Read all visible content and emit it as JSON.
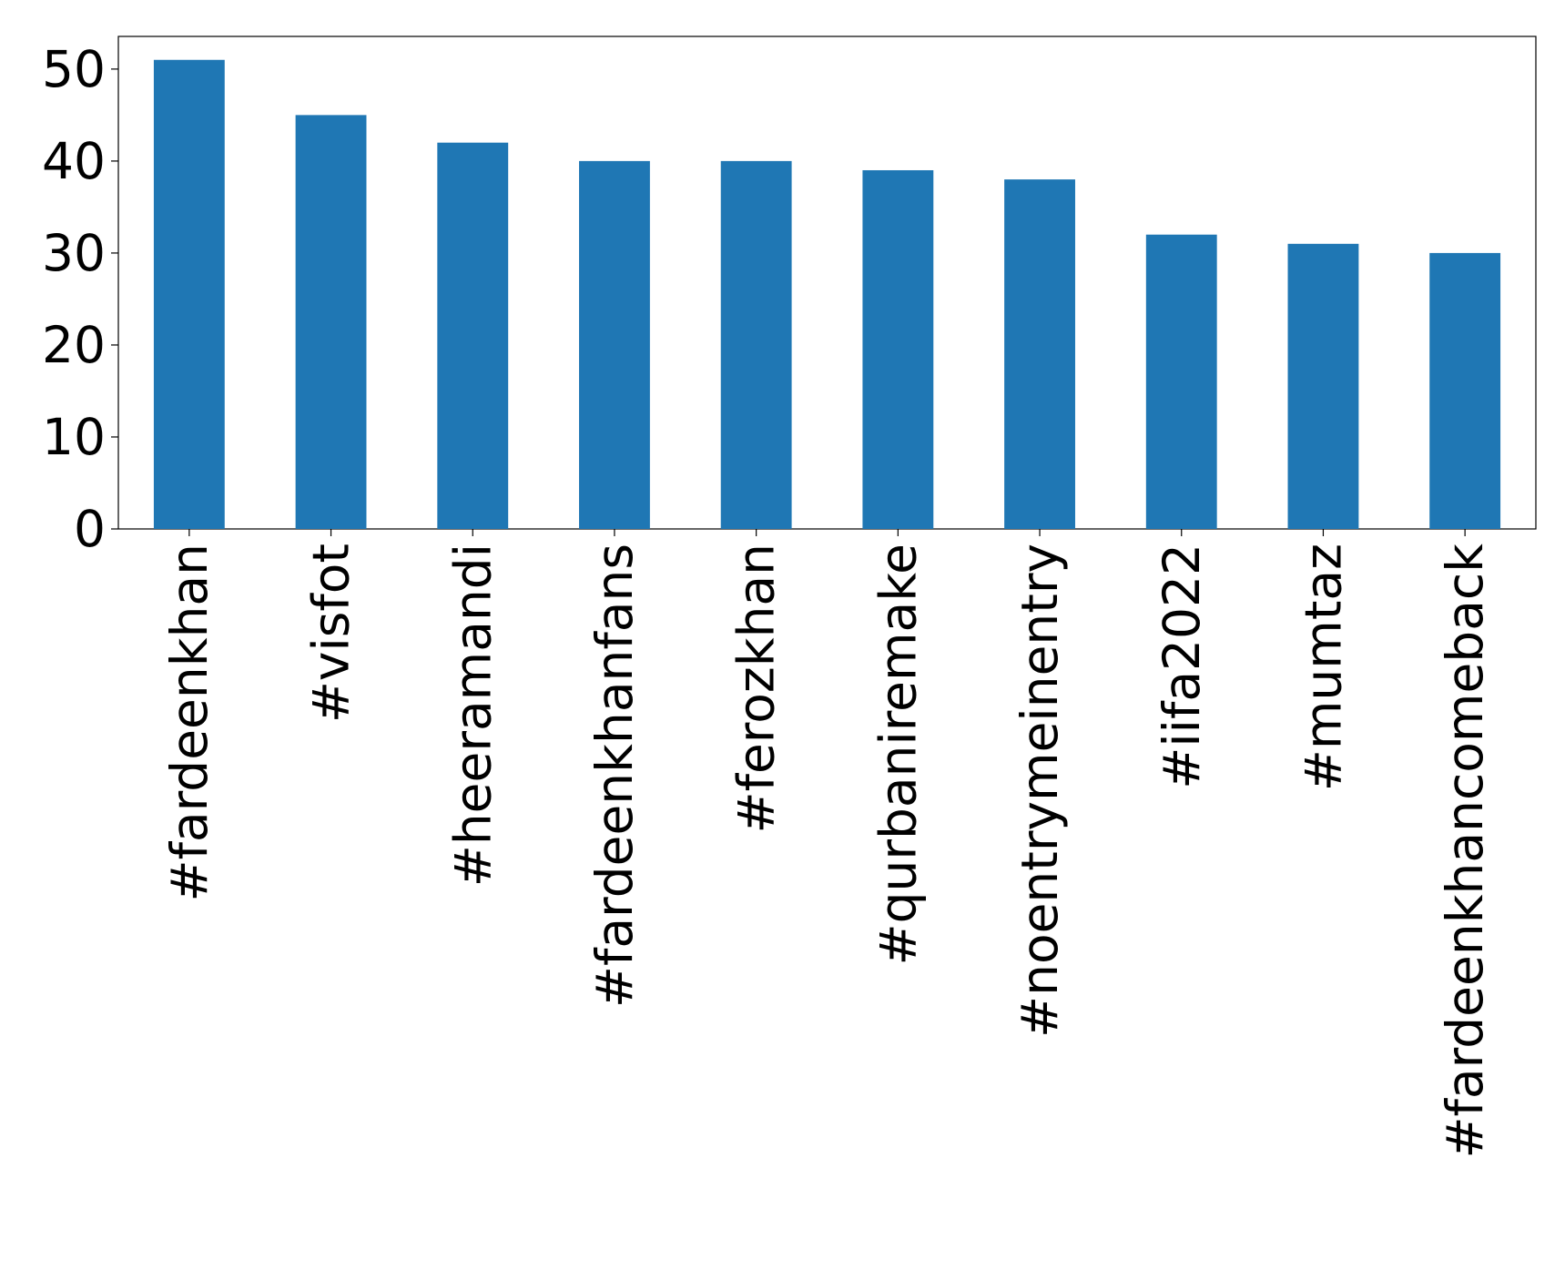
{
  "chart_data": {
    "type": "bar",
    "categories": [
      "#fardeenkhan",
      "#visfot",
      "#heeramandi",
      "#fardeenkhanfans",
      "#ferozkhan",
      "#qurbaniremake",
      "#noentrymeinentry",
      "#iifa2022",
      "#mumtaz",
      "#fardeenkhancomeback"
    ],
    "values": [
      51,
      45,
      42,
      40,
      40,
      39,
      38,
      32,
      31,
      30
    ],
    "color": "#1f77b4",
    "ylim": [
      0,
      53.55
    ],
    "yticks": [
      0,
      10,
      20,
      30,
      40,
      50
    ],
    "grid": false
  }
}
